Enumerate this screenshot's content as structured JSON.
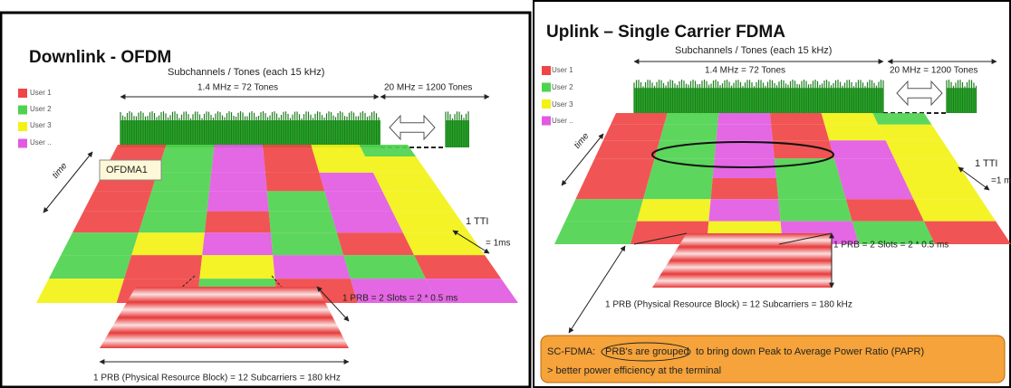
{
  "left": {
    "title": "Downlink - OFDM",
    "subtitle": "Subchannels / Tones (each 15 kHz)",
    "narrow_band": "1.4 MHz = 72 Tones",
    "wide_band": "20 MHz = 1200 Tones",
    "legend": [
      "User 1",
      "User 2",
      "User 3",
      "User .."
    ],
    "time": "time",
    "tooltip": "OFDMA1",
    "tti": "1 TTI",
    "tti_duration": "= 1ms",
    "prb_slots": "1 PRB = 2 Slots = 2 * 0.5 ms",
    "prb_definition": "1 PRB (Physical Resource Block) = 12 Subcarriers = 180 kHz"
  },
  "right": {
    "title": "Uplink – Single Carrier FDMA",
    "subtitle": "Subchannels / Tones (each 15 kHz)",
    "narrow_band": "1.4 MHz = 72 Tones",
    "wide_band": "20 MHz = 1200 Tones",
    "legend": [
      "User 1",
      "User 2",
      "User 3",
      "User .."
    ],
    "time": "time",
    "tti": "1 TTI",
    "tti_duration": "=1 m",
    "prb_slots": "1 PRB = 2 Slots = 2 * 0.5 ms",
    "prb_definition": "1 PRB (Physical Resource Block) = 12 Subcarriers = 180 kHz",
    "note": {
      "prefix": "SC-FDMA:",
      "highlight": "PRB's are grouped",
      "rest": "to bring down Peak to Average Power Ratio (PAPR)",
      "line2": "> better power efficiency at the terminal"
    }
  }
}
